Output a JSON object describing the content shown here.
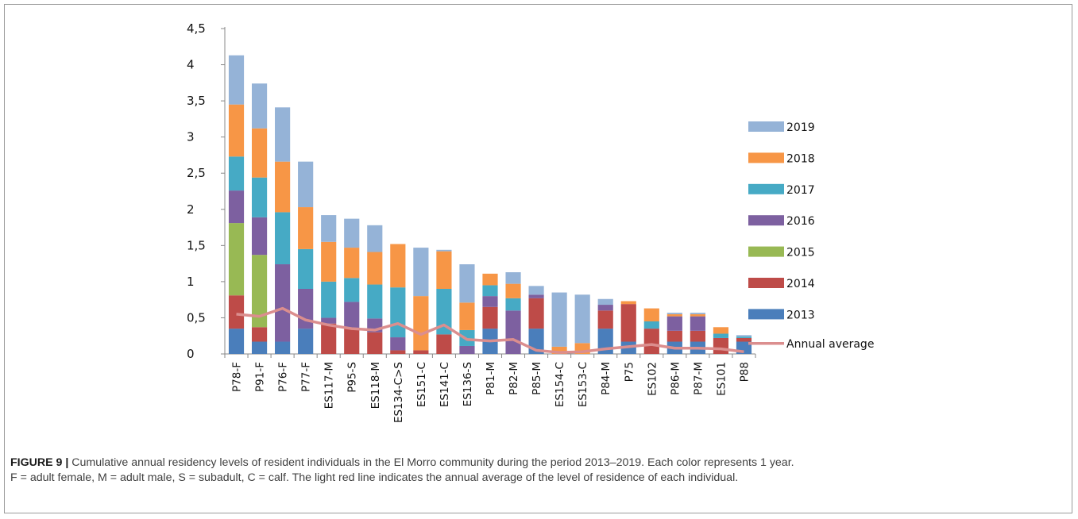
{
  "caption": {
    "label": "FIGURE 9 |",
    "text": " Cumulative annual residency levels of resident individuals in the El Morro community during the period 2013–2019. Each color represents 1 year.",
    "line2": "F = adult female, M = adult male, S = subadult, C = calf. The light red line indicates the annual average of the level of residence of each individual."
  },
  "chart_data": {
    "type": "bar",
    "stacked": true,
    "title": "",
    "xlabel": "",
    "ylabel": "",
    "ylim": [
      0,
      4.5
    ],
    "yticks": [
      "0",
      "0,5",
      "1",
      "1,5",
      "2",
      "2,5",
      "3",
      "3,5",
      "4",
      "4,5"
    ],
    "grid": false,
    "legend_position": "right",
    "categories": [
      "P78-F",
      "P91-F",
      "P76-F",
      "P77-F",
      "ES117-M",
      "P95-S",
      "ES118-M",
      "ES134-C>S",
      "ES151-C",
      "ES141-C",
      "ES136-S",
      "P81-M",
      "P82-M",
      "P85-M",
      "ES154-C",
      "ES153-C",
      "P84-M",
      "P75",
      "ES102",
      "P86-M",
      "P87-M",
      "ES101",
      "P88"
    ],
    "series": [
      {
        "name": "2013",
        "color": "#4a7ebb",
        "values": [
          0.35,
          0.17,
          0.17,
          0.35,
          0,
          0,
          0,
          0,
          0,
          0,
          0,
          0.35,
          0,
          0.35,
          0,
          0,
          0.35,
          0.17,
          0,
          0.17,
          0.17,
          0,
          0.17
        ]
      },
      {
        "name": "2014",
        "color": "#be4b48",
        "values": [
          0.46,
          0.2,
          0,
          0,
          0.42,
          0.35,
          0.3,
          0.05,
          0.05,
          0.27,
          0,
          0.3,
          0,
          0.42,
          0,
          0,
          0.25,
          0.52,
          0.35,
          0.15,
          0.15,
          0.22,
          0.05
        ]
      },
      {
        "name": "2015",
        "color": "#98b954",
        "values": [
          1.0,
          1.0,
          0,
          0,
          0,
          0,
          0,
          0,
          0,
          0,
          0,
          0,
          0,
          0,
          0,
          0,
          0,
          0,
          0,
          0,
          0,
          0,
          0
        ]
      },
      {
        "name": "2016",
        "color": "#7d60a0",
        "values": [
          0.45,
          0.52,
          1.07,
          0.55,
          0.08,
          0.37,
          0.19,
          0.18,
          0,
          0,
          0.11,
          0.15,
          0.6,
          0.05,
          0,
          0,
          0.08,
          0,
          0,
          0.2,
          0.2,
          0,
          0
        ]
      },
      {
        "name": "2017",
        "color": "#46aac5",
        "values": [
          0.47,
          0.55,
          0.72,
          0.55,
          0.5,
          0.33,
          0.47,
          0.69,
          0,
          0.63,
          0.22,
          0.15,
          0.17,
          0,
          0,
          0,
          0,
          0,
          0.1,
          0,
          0,
          0.06,
          0.02
        ]
      },
      {
        "name": "2018",
        "color": "#f79646",
        "values": [
          0.72,
          0.68,
          0.7,
          0.58,
          0.55,
          0.42,
          0.45,
          0.6,
          0.75,
          0.52,
          0.38,
          0.16,
          0.2,
          0,
          0.1,
          0.15,
          0,
          0.04,
          0.18,
          0.03,
          0.03,
          0.09,
          0
        ]
      },
      {
        "name": "2019",
        "color": "#95b3d7",
        "values": [
          0.68,
          0.62,
          0.75,
          0.63,
          0.37,
          0.4,
          0.37,
          0,
          0.67,
          0.02,
          0.53,
          0,
          0.16,
          0.12,
          0.75,
          0.67,
          0.08,
          0,
          0,
          0.02,
          0.02,
          0,
          0.02
        ]
      }
    ],
    "line": {
      "name": "Annual average",
      "color": "#db8e8e",
      "values": [
        0.55,
        0.52,
        0.63,
        0.47,
        0.4,
        0.35,
        0.33,
        0.42,
        0.27,
        0.4,
        0.2,
        0.18,
        0.2,
        0.05,
        0.02,
        0.03,
        0.07,
        0.1,
        0.13,
        0.08,
        0.08,
        0.07,
        0.03
      ]
    }
  }
}
